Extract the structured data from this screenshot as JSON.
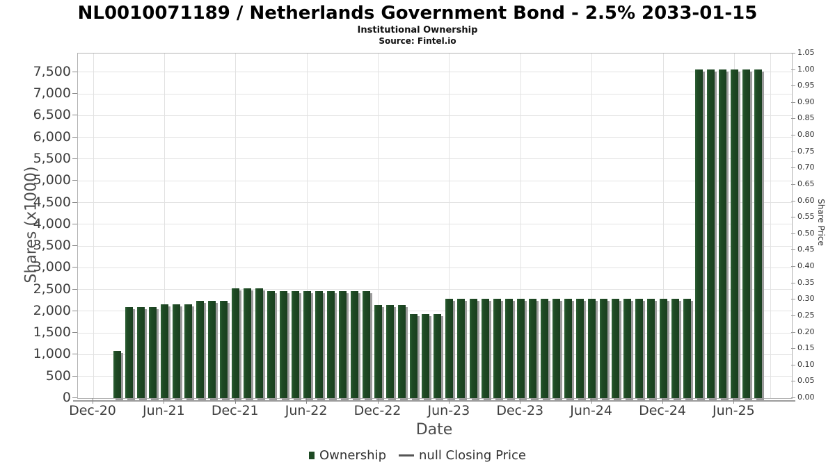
{
  "title": "NL0010071189 / Netherlands Government Bond - 2.5% 2033-01-15",
  "subtitle": "Institutional Ownership",
  "source": "Source: Fintel.io",
  "legend": {
    "ownership_label": "Ownership",
    "price_label": "null Closing Price"
  },
  "colors": {
    "bar_green": "#1e4a24",
    "bar_shadow": "#9b9b9b",
    "gridline": "#e2e2e2",
    "frame": "#b3b3b3"
  },
  "chart_data": {
    "type": "bar",
    "title": "NL0010071189 / Netherlands Government Bond - 2.5% 2033-01-15",
    "subtitle": "Institutional Ownership",
    "xlabel": "Date",
    "ylabel_left": "Shares (x1000)",
    "ylabel_right": "Share Price",
    "grid": true,
    "legend_position": "bottom",
    "x_tick_labels": [
      "Dec-20",
      "Jun-21",
      "Dec-21",
      "Jun-22",
      "Dec-22",
      "Jun-23",
      "Dec-23",
      "Jun-24",
      "Dec-24",
      "Jun-25"
    ],
    "y_left_tick_labels": [
      "0",
      "500",
      "1,000",
      "1,500",
      "2,000",
      "2,500",
      "3,000",
      "3,500",
      "4,000",
      "4,500",
      "5,000",
      "5,500",
      "6,000",
      "6,500",
      "7,000",
      "7,500"
    ],
    "y_right_tick_labels": [
      "0.00",
      "0.05",
      "0.10",
      "0.15",
      "0.20",
      "0.25",
      "0.30",
      "0.35",
      "0.40",
      "0.45",
      "0.50",
      "0.55",
      "0.60",
      "0.65",
      "0.70",
      "0.75",
      "0.80",
      "0.85",
      "0.90",
      "0.95",
      "1.00",
      "1.05"
    ],
    "ylim_left": [
      0,
      7930
    ],
    "ylim_right": [
      0,
      1.05
    ],
    "x": [
      "Feb-21",
      "Mar-21",
      "Apr-21",
      "May-21",
      "Jun-21",
      "Jul-21",
      "Aug-21",
      "Sep-21",
      "Oct-21",
      "Nov-21",
      "Dec-21",
      "Jan-22",
      "Feb-22",
      "Mar-22",
      "Apr-22",
      "May-22",
      "Jun-22",
      "Jul-22",
      "Aug-22",
      "Sep-22",
      "Oct-22",
      "Nov-22",
      "Dec-22",
      "Jan-23",
      "Feb-23",
      "Mar-23",
      "Apr-23",
      "May-23",
      "Jun-23",
      "Jul-23",
      "Aug-23",
      "Sep-23",
      "Oct-23",
      "Nov-23",
      "Dec-23",
      "Jan-24",
      "Feb-24",
      "Mar-24",
      "Apr-24",
      "May-24",
      "Jun-24",
      "Jul-24",
      "Aug-24",
      "Sep-24",
      "Oct-24",
      "Nov-24",
      "Dec-24",
      "Jan-25",
      "Feb-25",
      "Mar-25",
      "Apr-25",
      "May-25",
      "Jun-25",
      "Jul-25",
      "Aug-25"
    ],
    "series": [
      {
        "name": "Ownership",
        "type": "bar",
        "units": "shares x1000",
        "values": [
          1090,
          2100,
          2100,
          2100,
          2160,
          2160,
          2160,
          2240,
          2240,
          2240,
          2520,
          2520,
          2520,
          2460,
          2460,
          2460,
          2460,
          2460,
          2460,
          2460,
          2460,
          2460,
          2150,
          2150,
          2150,
          1940,
          1940,
          1940,
          2280,
          2280,
          2280,
          2280,
          2280,
          2280,
          2280,
          2280,
          2280,
          2280,
          2280,
          2280,
          2280,
          2280,
          2280,
          2280,
          2280,
          2280,
          2280,
          2280,
          2280,
          7560,
          7560,
          7560,
          7560,
          7560,
          7560
        ]
      },
      {
        "name": "null Closing Price",
        "type": "line",
        "values": []
      }
    ]
  }
}
